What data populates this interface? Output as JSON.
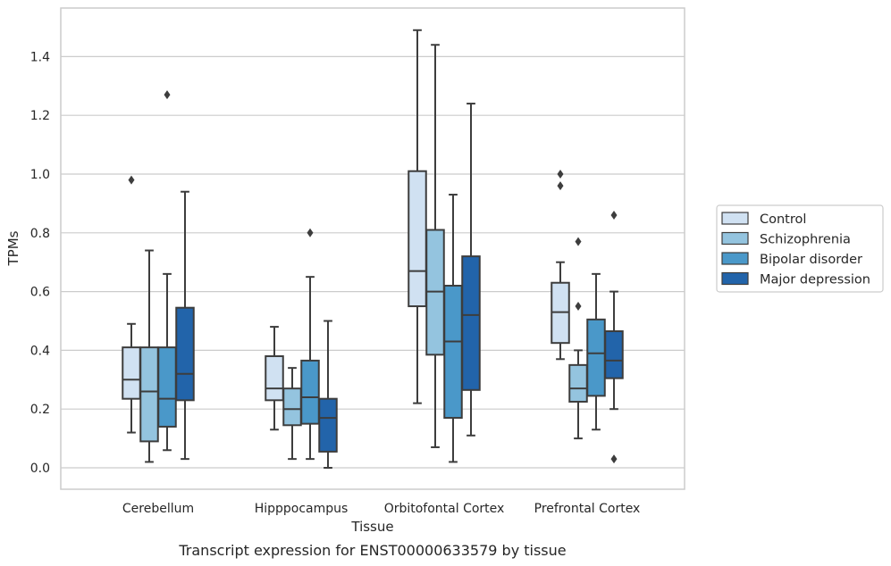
{
  "chart_data": {
    "type": "box",
    "title": "",
    "caption": "Transcript expression for ENST00000633579 by tissue",
    "xlabel": "Tissue",
    "ylabel": "TPMs",
    "ylim": [
      -0.07,
      1.57
    ],
    "yticks": [
      0.0,
      0.2,
      0.4,
      0.6,
      0.8,
      1.0,
      1.2,
      1.4
    ],
    "ytick_labels": [
      "0.0",
      "0.2",
      "0.4",
      "0.6",
      "0.8",
      "1.0",
      "1.2",
      "1.4"
    ],
    "grid": "horizontal",
    "legend_position": "right",
    "categories": [
      "Cerebellum",
      "Hipppocampus",
      "Orbitofontal Cortex",
      "Prefrontal Cortex"
    ],
    "series": [
      {
        "name": "Control",
        "color": "#d0e1f2",
        "boxes": [
          {
            "whisker_low": 0.12,
            "q1": 0.235,
            "median": 0.3,
            "q3": 0.41,
            "whisker_high": 0.49,
            "outliers": [
              0.98
            ]
          },
          {
            "whisker_low": 0.13,
            "q1": 0.23,
            "median": 0.27,
            "q3": 0.38,
            "whisker_high": 0.48,
            "outliers": []
          },
          {
            "whisker_low": 0.22,
            "q1": 0.55,
            "median": 0.67,
            "q3": 1.01,
            "whisker_high": 1.49,
            "outliers": []
          },
          {
            "whisker_low": 0.37,
            "q1": 0.425,
            "median": 0.53,
            "q3": 0.63,
            "whisker_high": 0.7,
            "outliers": [
              1.0,
              0.96
            ]
          }
        ]
      },
      {
        "name": "Schizophrenia",
        "color": "#94c4df",
        "boxes": [
          {
            "whisker_low": 0.02,
            "q1": 0.09,
            "median": 0.26,
            "q3": 0.41,
            "whisker_high": 0.74,
            "outliers": []
          },
          {
            "whisker_low": 0.03,
            "q1": 0.145,
            "median": 0.2,
            "q3": 0.27,
            "whisker_high": 0.34,
            "outliers": []
          },
          {
            "whisker_low": 0.07,
            "q1": 0.385,
            "median": 0.6,
            "q3": 0.81,
            "whisker_high": 1.44,
            "outliers": []
          },
          {
            "whisker_low": 0.1,
            "q1": 0.225,
            "median": 0.27,
            "q3": 0.35,
            "whisker_high": 0.4,
            "outliers": [
              0.77,
              0.55
            ]
          }
        ]
      },
      {
        "name": "Bipolar disorder",
        "color": "#4a98c9",
        "boxes": [
          {
            "whisker_low": 0.06,
            "q1": 0.14,
            "median": 0.235,
            "q3": 0.41,
            "whisker_high": 0.66,
            "outliers": [
              1.27
            ]
          },
          {
            "whisker_low": 0.03,
            "q1": 0.15,
            "median": 0.24,
            "q3": 0.365,
            "whisker_high": 0.65,
            "outliers": [
              0.8
            ]
          },
          {
            "whisker_low": 0.02,
            "q1": 0.17,
            "median": 0.43,
            "q3": 0.62,
            "whisker_high": 0.93,
            "outliers": []
          },
          {
            "whisker_low": 0.13,
            "q1": 0.245,
            "median": 0.39,
            "q3": 0.505,
            "whisker_high": 0.66,
            "outliers": []
          }
        ]
      },
      {
        "name": "Major depression",
        "color": "#2264aa",
        "boxes": [
          {
            "whisker_low": 0.03,
            "q1": 0.23,
            "median": 0.32,
            "q3": 0.545,
            "whisker_high": 0.94,
            "outliers": []
          },
          {
            "whisker_low": 0.0,
            "q1": 0.055,
            "median": 0.17,
            "q3": 0.235,
            "whisker_high": 0.5,
            "outliers": []
          },
          {
            "whisker_low": 0.11,
            "q1": 0.265,
            "median": 0.52,
            "q3": 0.72,
            "whisker_high": 1.24,
            "outliers": []
          },
          {
            "whisker_low": 0.2,
            "q1": 0.305,
            "median": 0.365,
            "q3": 0.465,
            "whisker_high": 0.6,
            "outliers": [
              0.86,
              0.03
            ]
          }
        ]
      }
    ]
  }
}
